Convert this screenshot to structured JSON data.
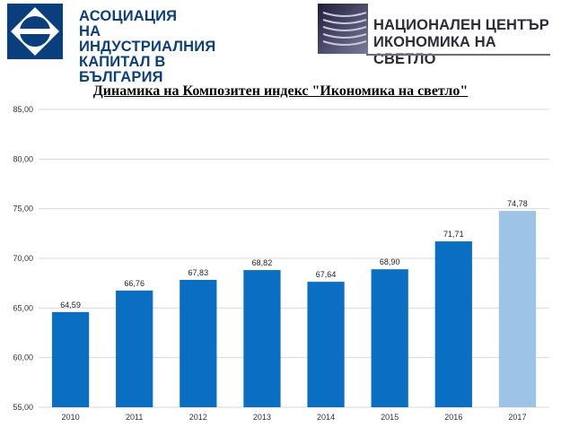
{
  "header": {
    "logo_left": {
      "icon": "aikb-diamond-logo",
      "lines": [
        "АСОЦИАЦИЯ",
        "НА ИНДУСТРИАЛНИЯ",
        "КАПИТАЛ В БЪЛГАРИЯ"
      ]
    },
    "logo_right": {
      "icon": "ncie-stripes-logo",
      "lines": [
        "НАЦИОНАЛЕН ЦЕНТЪР",
        "ИКОНОМИКА НА СВЕТЛО"
      ]
    }
  },
  "chart_data": {
    "type": "bar",
    "title": "Динамика на Композитен индекс \"Икономика на светло\"",
    "xlabel": "",
    "ylabel": "",
    "categories": [
      "2010",
      "2011",
      "2012",
      "2013",
      "2014",
      "2015",
      "2016",
      "2017"
    ],
    "values": [
      64.59,
      66.76,
      67.83,
      68.82,
      67.64,
      68.9,
      71.71,
      74.78
    ],
    "value_labels": [
      "64,59",
      "66,76",
      "67,83",
      "68,82",
      "67,64",
      "68,90",
      "71,71",
      "74,78"
    ],
    "ylim": [
      55,
      85
    ],
    "yticks": [
      55,
      60,
      65,
      70,
      75,
      80,
      85
    ],
    "ytick_labels": [
      "55,00",
      "60,00",
      "65,00",
      "70,00",
      "75,00",
      "80,00",
      "85,00"
    ],
    "grid": true,
    "legend": "none",
    "colors": {
      "bar": "#0a6fc2",
      "bar_highlight": "#9dc3e6",
      "grid": "#d9d9d9"
    },
    "highlight_category": "2017"
  }
}
